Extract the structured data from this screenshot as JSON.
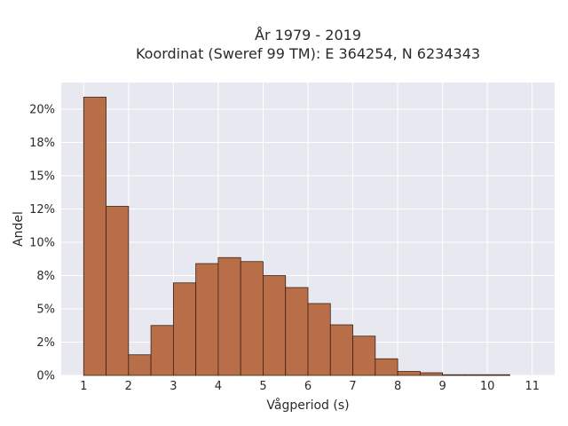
{
  "chart_data": {
    "type": "bar",
    "title_line1": "År 1979 - 2019",
    "title_line2": "Koordinat (Sweref 99 TM): E 364254, N 6234343",
    "xlabel": "Vågperiod (s)",
    "ylabel": "Andel",
    "xlim": [
      0.5,
      11.5
    ],
    "ylim": [
      0,
      0.22
    ],
    "grid": true,
    "x_ticks": [
      1,
      2,
      3,
      4,
      5,
      6,
      7,
      8,
      9,
      10,
      11
    ],
    "y_ticks": [
      {
        "value": 0.0,
        "label": "0%"
      },
      {
        "value": 0.025,
        "label": "2%"
      },
      {
        "value": 0.05,
        "label": "5%"
      },
      {
        "value": 0.075,
        "label": "8%"
      },
      {
        "value": 0.1,
        "label": "10%"
      },
      {
        "value": 0.125,
        "label": "12%"
      },
      {
        "value": 0.15,
        "label": "15%"
      },
      {
        "value": 0.175,
        "label": "18%"
      },
      {
        "value": 0.2,
        "label": "20%"
      }
    ],
    "bin_width": 0.5,
    "bin_starts": [
      1.0,
      1.5,
      2.0,
      2.5,
      3.0,
      3.5,
      4.0,
      4.5,
      5.0,
      5.5,
      6.0,
      6.5,
      7.0,
      7.5,
      8.0,
      8.5,
      9.0,
      9.5,
      10.0
    ],
    "values": [
      0.209,
      0.127,
      0.0155,
      0.0375,
      0.0695,
      0.084,
      0.0885,
      0.0855,
      0.075,
      0.066,
      0.054,
      0.038,
      0.0295,
      0.0125,
      0.003,
      0.002,
      0.0005,
      0.0005,
      0.0005
    ],
    "bar_color": "#b86f48",
    "bar_edge_color": "#3a2218",
    "plot_background": "#e8e8f1",
    "grid_color": "#ffffff"
  }
}
